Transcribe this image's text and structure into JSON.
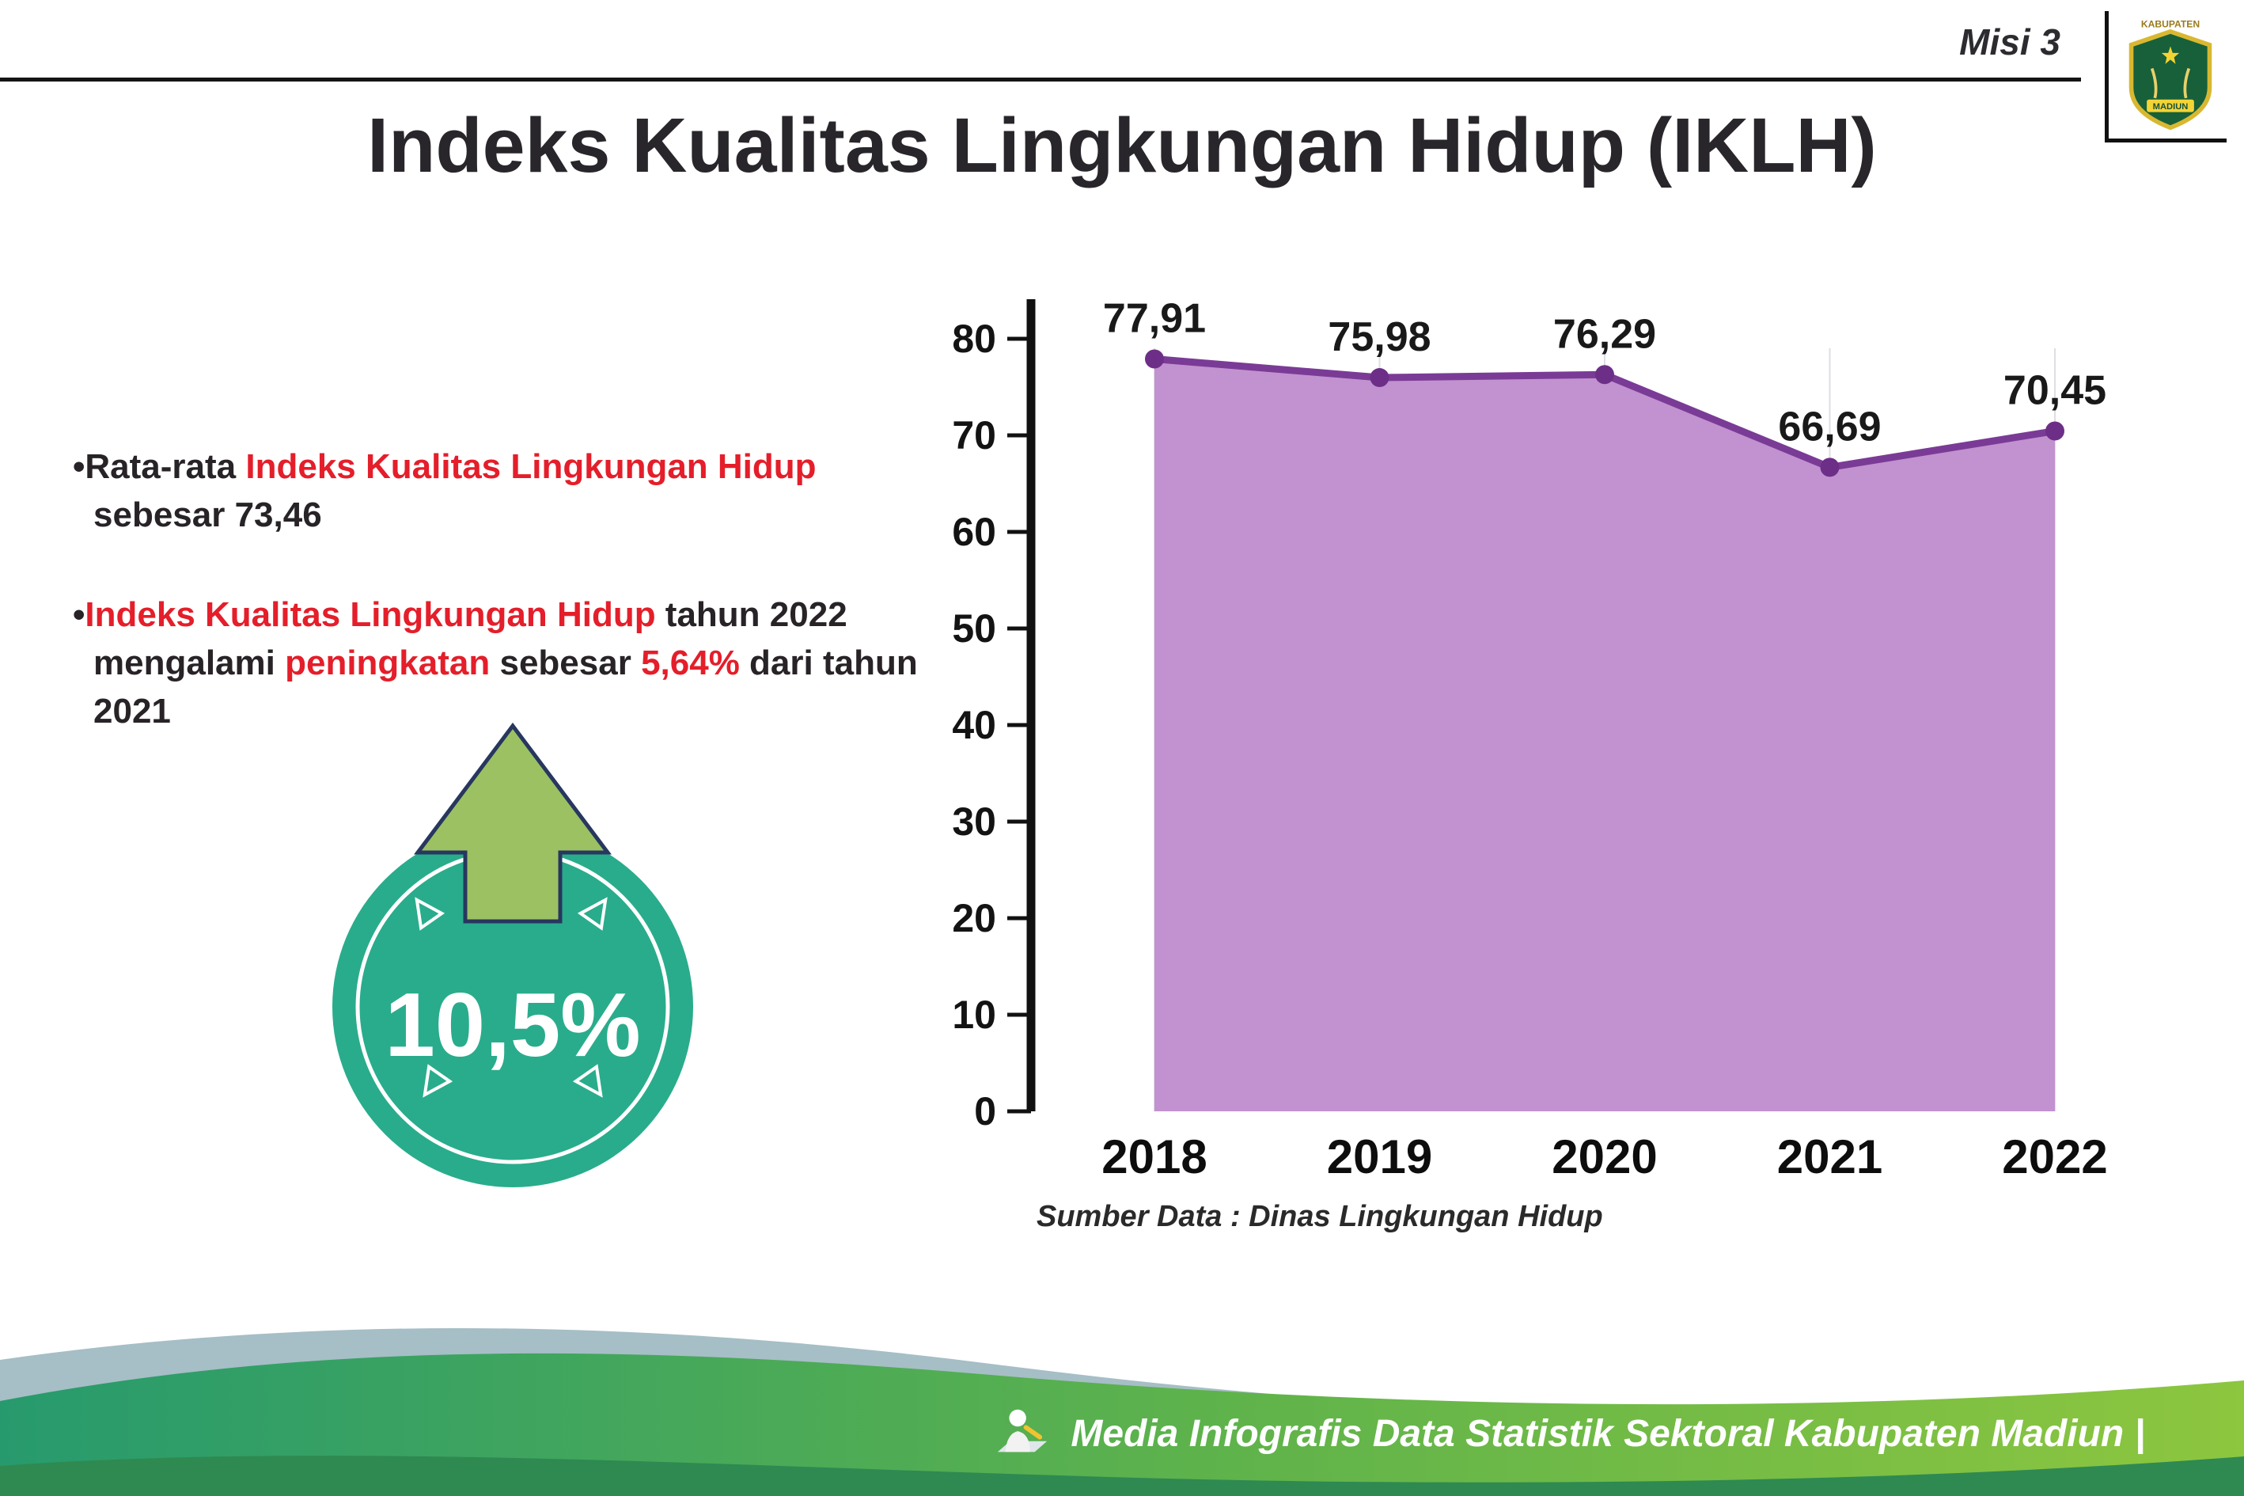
{
  "header": {
    "misi": "Misi 3",
    "title": "Indeks Kualitas Lingkungan Hidup (IKLH)",
    "logo_top": "KABUPATEN",
    "logo_bottom": "MADIUN"
  },
  "bullets": [
    {
      "segments": [
        {
          "text": "•Rata-rata ",
          "style": "dark"
        },
        {
          "text": "Indeks Kualitas Lingkungan Hidup",
          "style": "red"
        },
        {
          "text": " sebesar 73,46",
          "style": "dark"
        }
      ]
    },
    {
      "segments": [
        {
          "text": "•",
          "style": "dark"
        },
        {
          "text": "Indeks Kualitas Lingkungan Hidup",
          "style": "red"
        },
        {
          "text": " tahun 2022 mengalami ",
          "style": "dark"
        },
        {
          "text": "peningkatan",
          "style": "red"
        },
        {
          "text": " sebesar ",
          "style": "dark"
        },
        {
          "text": "5,64%",
          "style": "red"
        },
        {
          "text": " dari tahun 2021",
          "style": "dark"
        }
      ]
    }
  ],
  "badge": {
    "value": "10,5%"
  },
  "chart_data": {
    "type": "area",
    "categories": [
      "2018",
      "2019",
      "2020",
      "2021",
      "2022"
    ],
    "values": [
      77.91,
      75.98,
      76.29,
      66.69,
      70.45
    ],
    "labels": [
      "77,91",
      "75,98",
      "76,29",
      "66,69",
      "70,45"
    ],
    "title": "Indeks Kualitas Lingkungan Hidup (IKLH)",
    "xlabel": "",
    "ylabel": "",
    "ylim": [
      0,
      80
    ],
    "yticks": [
      0,
      10,
      20,
      30,
      40,
      50,
      60,
      70,
      80
    ],
    "grid": "vertical-light",
    "legend": "none",
    "line_color": "#7a3b96",
    "marker_color": "#6d2e88",
    "fill_color": "#c192cf",
    "source": "Sumber Data : Dinas Lingkungan Hidup"
  },
  "footer": {
    "credit": "Media Infografis Data Statistik Sektoral Kabupaten Madiun |"
  },
  "colors": {
    "accent_red": "#e41e2a",
    "badge_teal": "#29ac8c",
    "arrow_green": "#9cc163",
    "footer_green_left": "#279a6d",
    "footer_green_right": "#8dc63f",
    "footer_dark_green": "#2e8a51",
    "footer_gray_blue": "#a6bec6"
  }
}
